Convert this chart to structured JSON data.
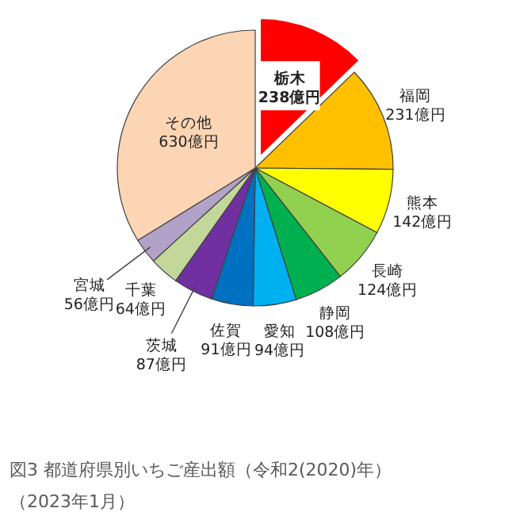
{
  "chart_data": {
    "type": "pie",
    "title": "図3 都道府県別いちご産出額（令和2(2020)年）",
    "annotations": [
      "（2023年1月）"
    ],
    "categories": [
      "栃木",
      "福岡",
      "熊本",
      "長崎",
      "静岡",
      "愛知",
      "佐賀",
      "茨城",
      "千葉",
      "宮城",
      "その他"
    ],
    "values": [
      238,
      231,
      142,
      124,
      108,
      94,
      91,
      87,
      64,
      56,
      630
    ],
    "value_labels": [
      "238億円",
      "231億円",
      "142億円",
      "124億円",
      "108億円",
      "94億円",
      "91億円",
      "87億円",
      "64億円",
      "56億円",
      "630億円"
    ],
    "colors": [
      "#ff0000",
      "#ffc000",
      "#ffff00",
      "#92d050",
      "#00b050",
      "#00b0f0",
      "#0070c0",
      "#7030a0",
      "#c4d79b",
      "#b3a2c7",
      "#fcd5b5"
    ]
  }
}
